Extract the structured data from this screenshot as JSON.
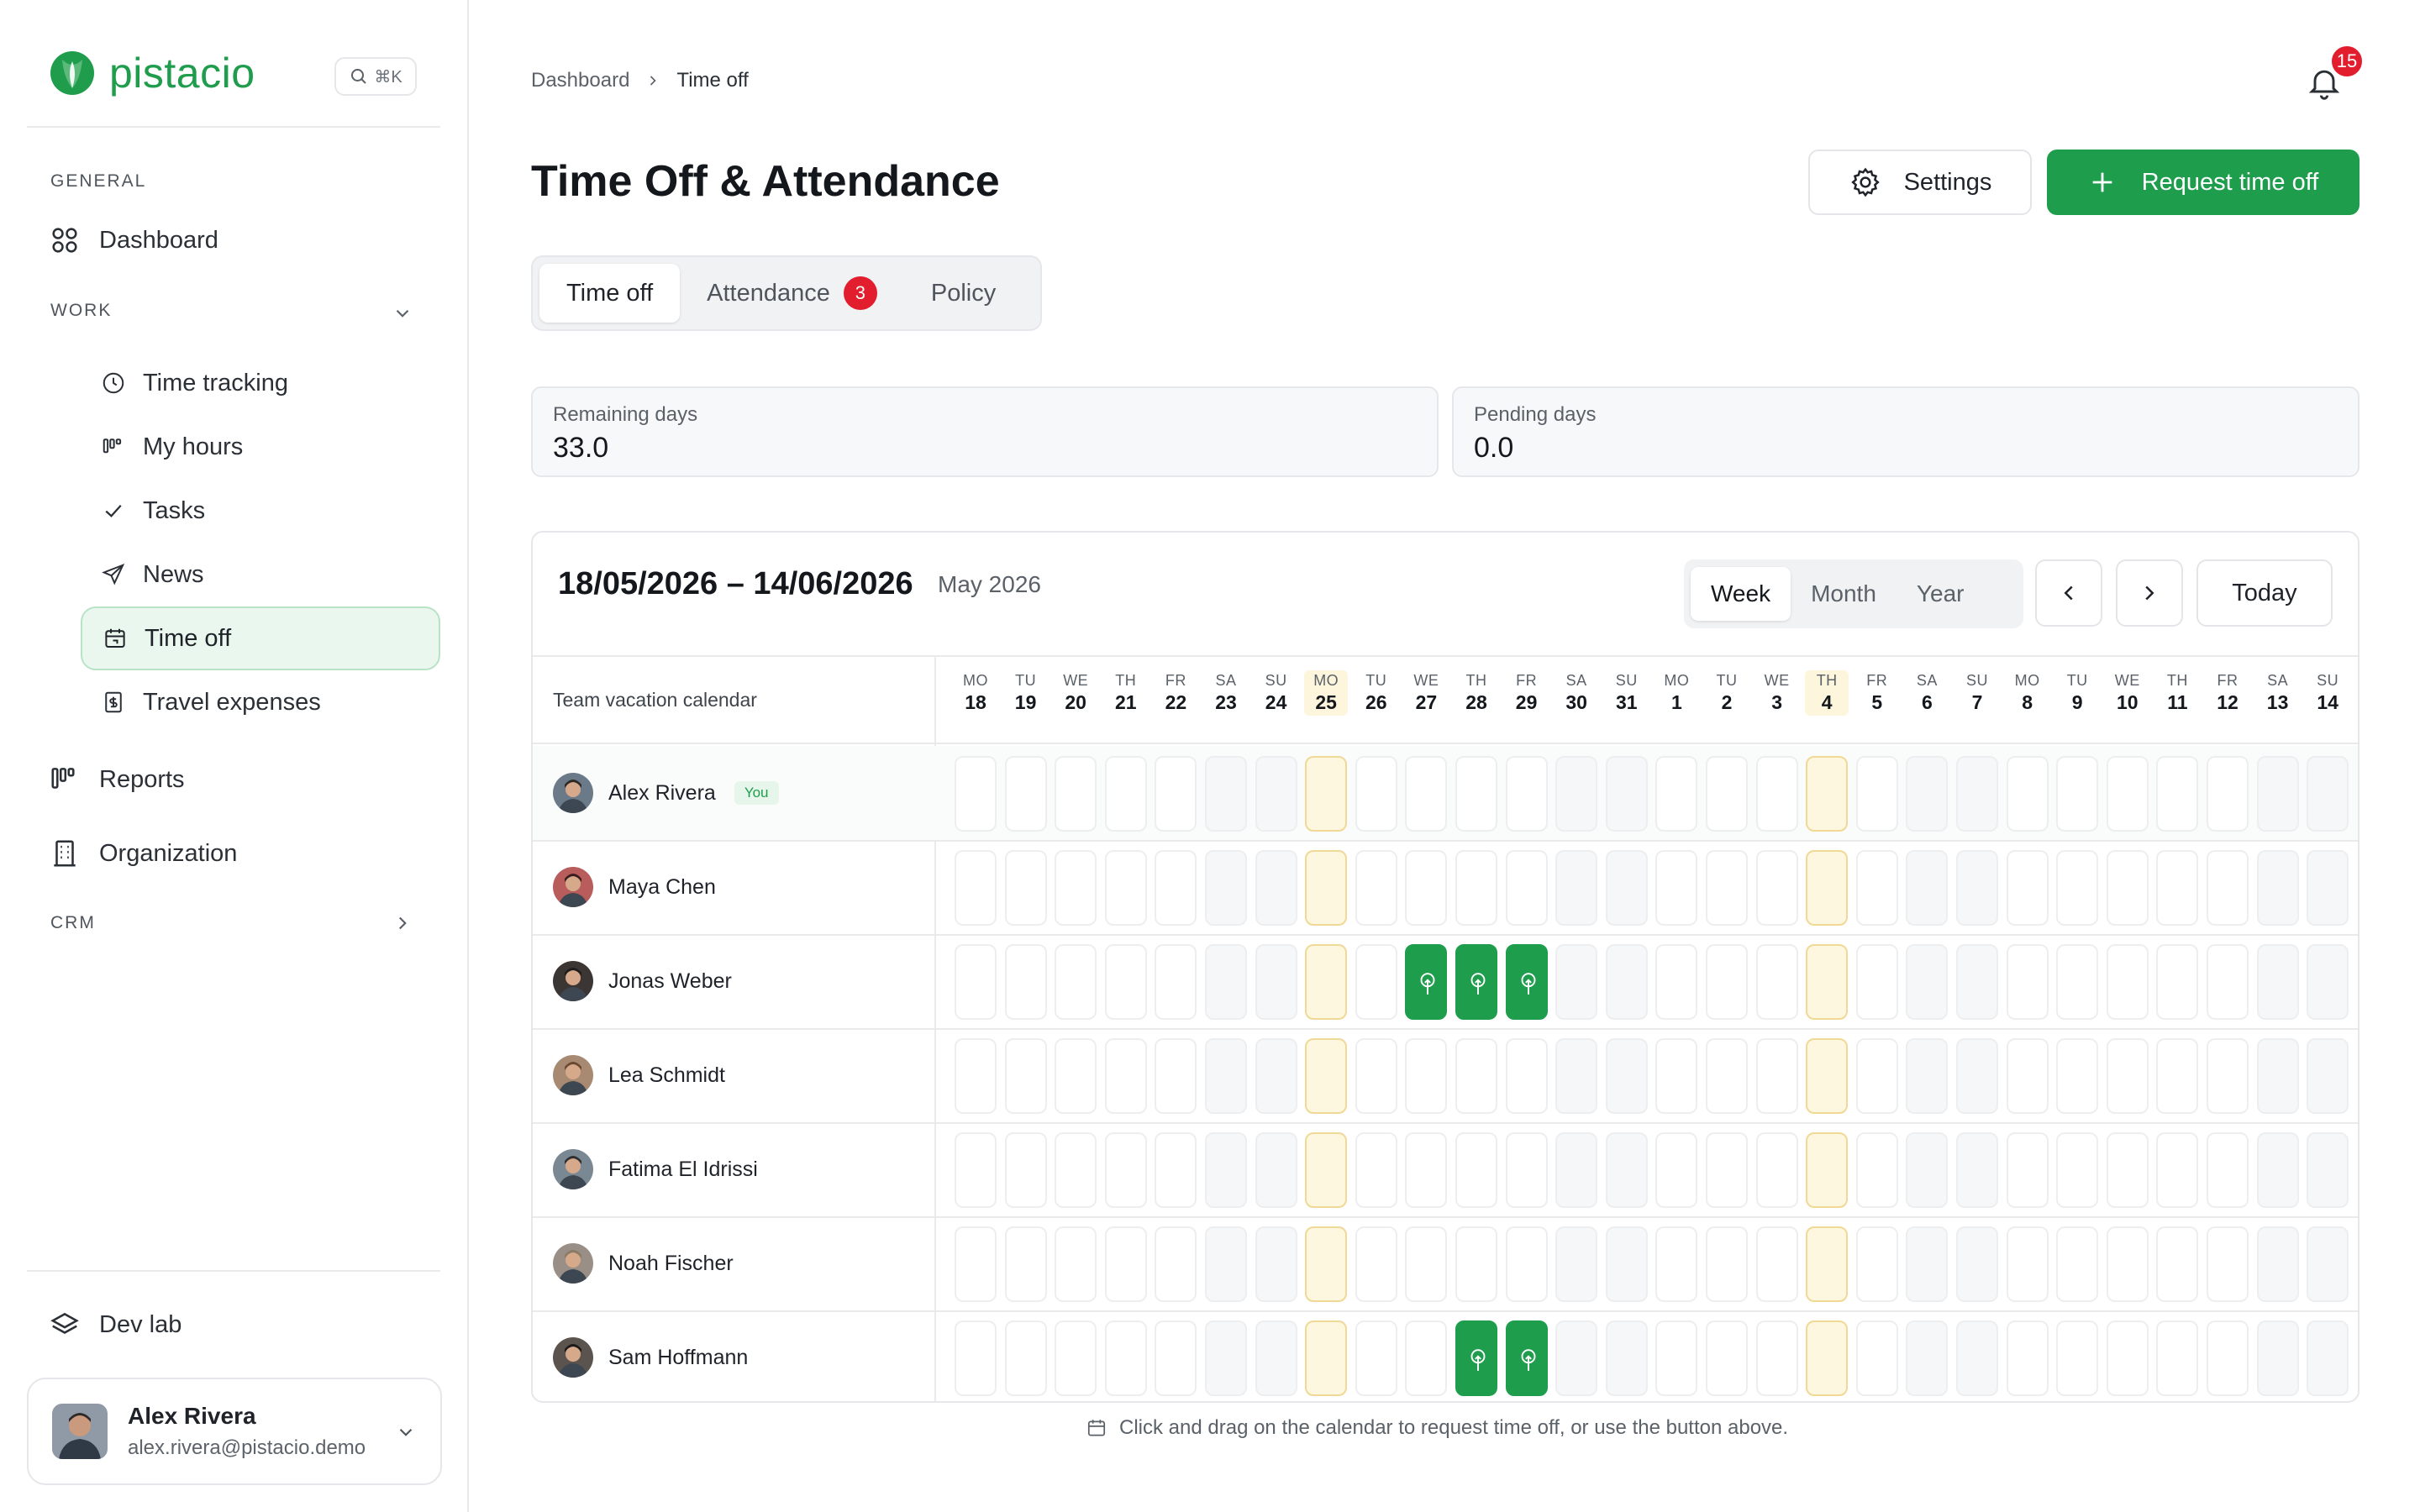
{
  "app": {
    "name": "pistacio",
    "search_shortcut": "⌘K"
  },
  "sidebar": {
    "general_label": "GENERAL",
    "dashboard": "Dashboard",
    "work_label": "WORK",
    "work_items": [
      {
        "label": "Time tracking",
        "icon": "clock-icon"
      },
      {
        "label": "My hours",
        "icon": "bars-icon"
      },
      {
        "label": "Tasks",
        "icon": "check-icon"
      },
      {
        "label": "News",
        "icon": "send-icon"
      },
      {
        "label": "Time off",
        "icon": "calendar-icon",
        "active": true
      },
      {
        "label": "Travel expenses",
        "icon": "receipt-icon"
      }
    ],
    "reports": "Reports",
    "organization": "Organization",
    "crm_label": "CRM",
    "dev_lab": "Dev lab",
    "user": {
      "name": "Alex Rivera",
      "email": "alex.rivera@pistacio.demo"
    }
  },
  "header": {
    "breadcrumb_root": "Dashboard",
    "breadcrumb_current": "Time off",
    "notifications_count": "15",
    "title": "Time Off & Attendance",
    "settings_label": "Settings",
    "request_label": "Request time off"
  },
  "tabs": {
    "time_off": "Time off",
    "attendance": "Attendance",
    "attendance_badge": "3",
    "policy": "Policy"
  },
  "stats": {
    "remaining_label": "Remaining days",
    "remaining_value": "33.0",
    "pending_label": "Pending days",
    "pending_value": "0.0"
  },
  "calendar": {
    "range": "18/05/2026 – 14/06/2026",
    "month": "May 2026",
    "views": [
      "Week",
      "Month",
      "Year"
    ],
    "active_view": "Week",
    "today_label": "Today",
    "column_label": "Team vacation calendar",
    "days": [
      {
        "dow": "MO",
        "d": "18"
      },
      {
        "dow": "TU",
        "d": "19"
      },
      {
        "dow": "WE",
        "d": "20"
      },
      {
        "dow": "TH",
        "d": "21"
      },
      {
        "dow": "FR",
        "d": "22"
      },
      {
        "dow": "SA",
        "d": "23"
      },
      {
        "dow": "SU",
        "d": "24"
      },
      {
        "dow": "MO",
        "d": "25"
      },
      {
        "dow": "TU",
        "d": "26"
      },
      {
        "dow": "WE",
        "d": "27"
      },
      {
        "dow": "TH",
        "d": "28"
      },
      {
        "dow": "FR",
        "d": "29"
      },
      {
        "dow": "SA",
        "d": "30"
      },
      {
        "dow": "SU",
        "d": "31"
      },
      {
        "dow": "MO",
        "d": "1"
      },
      {
        "dow": "TU",
        "d": "2"
      },
      {
        "dow": "WE",
        "d": "3"
      },
      {
        "dow": "TH",
        "d": "4"
      },
      {
        "dow": "FR",
        "d": "5"
      },
      {
        "dow": "SA",
        "d": "6"
      },
      {
        "dow": "SU",
        "d": "7"
      },
      {
        "dow": "MO",
        "d": "8"
      },
      {
        "dow": "TU",
        "d": "9"
      },
      {
        "dow": "WE",
        "d": "10"
      },
      {
        "dow": "TH",
        "d": "11"
      },
      {
        "dow": "FR",
        "d": "12"
      },
      {
        "dow": "SA",
        "d": "13"
      },
      {
        "dow": "SU",
        "d": "14"
      }
    ],
    "highlight_days": [
      7,
      17
    ],
    "weekend_days": [
      5,
      6,
      12,
      13,
      19,
      20,
      26,
      27
    ],
    "members": [
      {
        "name": "Alex Rivera",
        "you": "You",
        "off_days": []
      },
      {
        "name": "Maya Chen",
        "off_days": []
      },
      {
        "name": "Jonas Weber",
        "off_days": [
          9,
          10,
          11
        ]
      },
      {
        "name": "Lea Schmidt",
        "off_days": []
      },
      {
        "name": "Fatima El Idrissi",
        "off_days": []
      },
      {
        "name": "Noah Fischer",
        "off_days": []
      },
      {
        "name": "Sam Hoffmann",
        "off_days": [
          10,
          11
        ]
      }
    ],
    "hint": "Click and drag on the calendar to request time off, or use the button above."
  },
  "colors": {
    "brand": "#1e9e4d",
    "badge": "#e11d2e",
    "highlight": "#fdf7e0"
  }
}
